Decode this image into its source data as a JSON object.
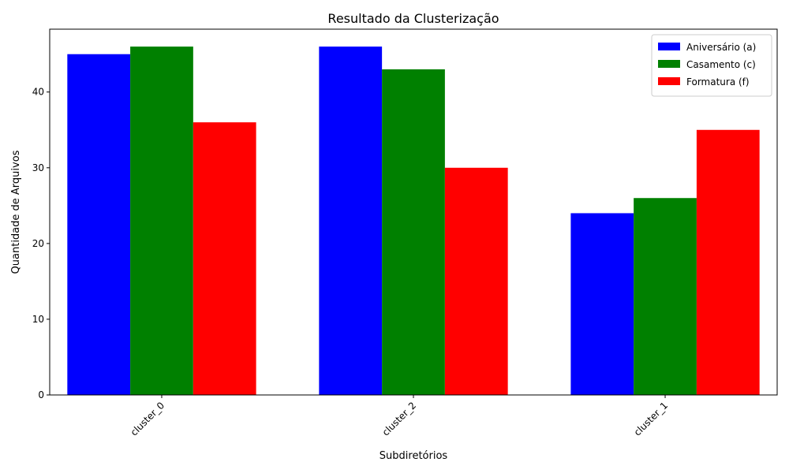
{
  "chart_data": {
    "type": "bar",
    "title": "Resultado da Clusterização",
    "xlabel": "Subdiretórios",
    "ylabel": "Quantidade de Arquivos",
    "categories": [
      "cluster_0",
      "cluster_2",
      "cluster_1"
    ],
    "series": [
      {
        "name": "Aniversário (a)",
        "color": "#0000ff",
        "values": [
          45,
          46,
          24
        ]
      },
      {
        "name": "Casamento (c)",
        "color": "#008000",
        "values": [
          46,
          43,
          26
        ]
      },
      {
        "name": "Formatura (f)",
        "color": "#ff0000",
        "values": [
          36,
          30,
          35
        ]
      }
    ],
    "ylim": [
      0,
      48.3
    ],
    "yticks": [
      0,
      10,
      20,
      30,
      40
    ],
    "grid": false,
    "legend": "top-right"
  }
}
